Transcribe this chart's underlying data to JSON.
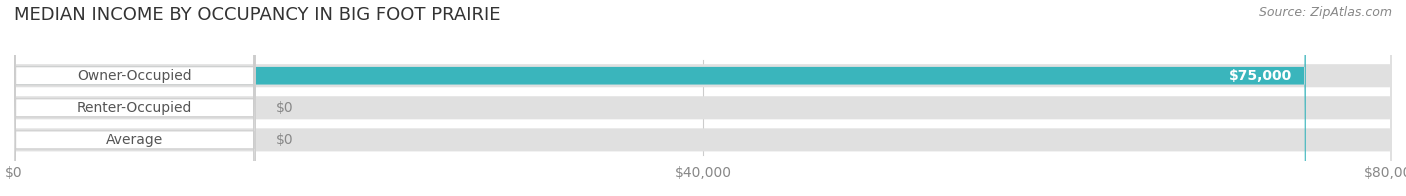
{
  "title": "MEDIAN INCOME BY OCCUPANCY IN BIG FOOT PRAIRIE",
  "source": "Source: ZipAtlas.com",
  "categories": [
    "Owner-Occupied",
    "Renter-Occupied",
    "Average"
  ],
  "values": [
    75000,
    0,
    0
  ],
  "bar_colors": [
    "#3ab5bc",
    "#b8a0c8",
    "#f5c899"
  ],
  "bar_bg_color": "#e8e8e8",
  "label_bg_color": "#ffffff",
  "xlim": [
    0,
    80000
  ],
  "xticks": [
    0,
    40000,
    80000
  ],
  "xtick_labels": [
    "$0",
    "$40,000",
    "$80,000"
  ],
  "value_labels": [
    "$75,000",
    "$0",
    "$0"
  ],
  "title_fontsize": 13,
  "tick_fontsize": 10,
  "bar_label_fontsize": 10,
  "value_label_fontsize": 10,
  "background_color": "#ffffff",
  "fig_width": 14.06,
  "fig_height": 1.96
}
